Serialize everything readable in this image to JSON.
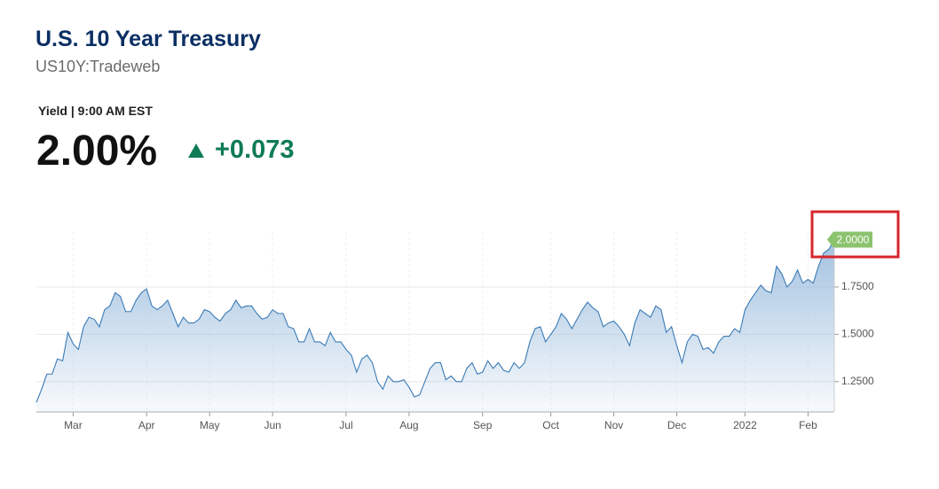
{
  "header": {
    "title": "U.S. 10 Year Treasury",
    "subtitle": "US10Y:Tradeweb"
  },
  "quote": {
    "label": "Yield | 9:00 AM EST",
    "price": "2.00%",
    "change": "+0.073"
  },
  "chart_data": {
    "type": "area",
    "categories": [
      null,
      null,
      null,
      null,
      null,
      null,
      null,
      "Mar",
      null,
      null,
      null,
      null,
      null,
      null,
      null,
      null,
      null,
      null,
      null,
      null,
      null,
      "Apr",
      null,
      null,
      null,
      null,
      null,
      null,
      null,
      null,
      null,
      null,
      null,
      "May",
      null,
      null,
      null,
      null,
      null,
      null,
      null,
      null,
      null,
      null,
      null,
      "Jun",
      null,
      null,
      null,
      null,
      null,
      null,
      null,
      null,
      null,
      null,
      null,
      null,
      null,
      "Jul",
      null,
      null,
      null,
      null,
      null,
      null,
      null,
      null,
      null,
      null,
      null,
      "Aug",
      null,
      null,
      null,
      null,
      null,
      null,
      null,
      null,
      null,
      null,
      null,
      null,
      null,
      "Sep",
      null,
      null,
      null,
      null,
      null,
      null,
      null,
      null,
      null,
      null,
      null,
      null,
      "Oct",
      null,
      null,
      null,
      null,
      null,
      null,
      null,
      null,
      null,
      null,
      null,
      "Nov",
      null,
      null,
      null,
      null,
      null,
      null,
      null,
      null,
      null,
      null,
      null,
      "Dec",
      null,
      null,
      null,
      null,
      null,
      null,
      null,
      null,
      null,
      null,
      null,
      null,
      "2022",
      null,
      null,
      null,
      null,
      null,
      null,
      null,
      null,
      null,
      null,
      null,
      "Feb",
      null,
      null,
      null,
      null,
      null
    ],
    "values": [
      1.14,
      1.21,
      1.29,
      1.29,
      1.37,
      1.36,
      1.51,
      1.45,
      1.42,
      1.54,
      1.59,
      1.58,
      1.54,
      1.63,
      1.65,
      1.72,
      1.7,
      1.62,
      1.62,
      1.68,
      1.72,
      1.74,
      1.65,
      1.63,
      1.65,
      1.68,
      1.61,
      1.54,
      1.59,
      1.56,
      1.56,
      1.58,
      1.63,
      1.62,
      1.59,
      1.57,
      1.61,
      1.63,
      1.68,
      1.64,
      1.65,
      1.65,
      1.61,
      1.58,
      1.59,
      1.63,
      1.61,
      1.61,
      1.54,
      1.53,
      1.46,
      1.46,
      1.53,
      1.46,
      1.46,
      1.44,
      1.51,
      1.46,
      1.46,
      1.42,
      1.39,
      1.3,
      1.37,
      1.39,
      1.35,
      1.25,
      1.21,
      1.28,
      1.25,
      1.25,
      1.26,
      1.22,
      1.17,
      1.18,
      1.25,
      1.32,
      1.35,
      1.35,
      1.26,
      1.28,
      1.25,
      1.25,
      1.32,
      1.35,
      1.29,
      1.3,
      1.36,
      1.32,
      1.35,
      1.31,
      1.3,
      1.35,
      1.32,
      1.35,
      1.46,
      1.53,
      1.54,
      1.46,
      1.5,
      1.54,
      1.61,
      1.58,
      1.53,
      1.58,
      1.63,
      1.67,
      1.64,
      1.62,
      1.54,
      1.56,
      1.57,
      1.54,
      1.5,
      1.44,
      1.56,
      1.63,
      1.61,
      1.59,
      1.65,
      1.63,
      1.51,
      1.54,
      1.44,
      1.35,
      1.46,
      1.5,
      1.49,
      1.42,
      1.43,
      1.4,
      1.46,
      1.49,
      1.49,
      1.53,
      1.51,
      1.63,
      1.68,
      1.72,
      1.76,
      1.73,
      1.72,
      1.86,
      1.82,
      1.75,
      1.78,
      1.84,
      1.77,
      1.79,
      1.77,
      1.86,
      1.93,
      1.95,
      2.0
    ],
    "value_labels": [
      null,
      null,
      null,
      null,
      null,
      null,
      null,
      null,
      null,
      null,
      null,
      null,
      null,
      null,
      null,
      null,
      null,
      null,
      null,
      null,
      null,
      null,
      null,
      null,
      null,
      null,
      null,
      null,
      null,
      null,
      null,
      null,
      null,
      null,
      null,
      null,
      null,
      null,
      null,
      null,
      null,
      null,
      null,
      null,
      null,
      null,
      null,
      null,
      null,
      null,
      null,
      null,
      null,
      null,
      null,
      null,
      null,
      null,
      null,
      null,
      null,
      null,
      null,
      null,
      null,
      null,
      null,
      null,
      null,
      null,
      null,
      null,
      null,
      null,
      null,
      null,
      null,
      null,
      null,
      null,
      null,
      null,
      null,
      null,
      null,
      null,
      null,
      null,
      null,
      null,
      null,
      null,
      null,
      null,
      null,
      null,
      null,
      null,
      null,
      null,
      null,
      null,
      null,
      null,
      null,
      null,
      null,
      null,
      null,
      null,
      null,
      null,
      null,
      null,
      null,
      null,
      null,
      null,
      null,
      null,
      null,
      null,
      null,
      null,
      null,
      null,
      null,
      null,
      null,
      null,
      null,
      null,
      null,
      null,
      null,
      null,
      null,
      null,
      null,
      null,
      null,
      null,
      null,
      null,
      null,
      null,
      null,
      null,
      null,
      null,
      null,
      null,
      "2.0000"
    ],
    "color": "#3b7bb6",
    "ylim": [
      1.09,
      2.04
    ],
    "yticks": [
      {
        "value": 1.25,
        "label": "1.2500"
      },
      {
        "value": 1.5,
        "label": "1.5000"
      },
      {
        "value": 1.75,
        "label": "1.7500"
      }
    ],
    "grid": true
  }
}
